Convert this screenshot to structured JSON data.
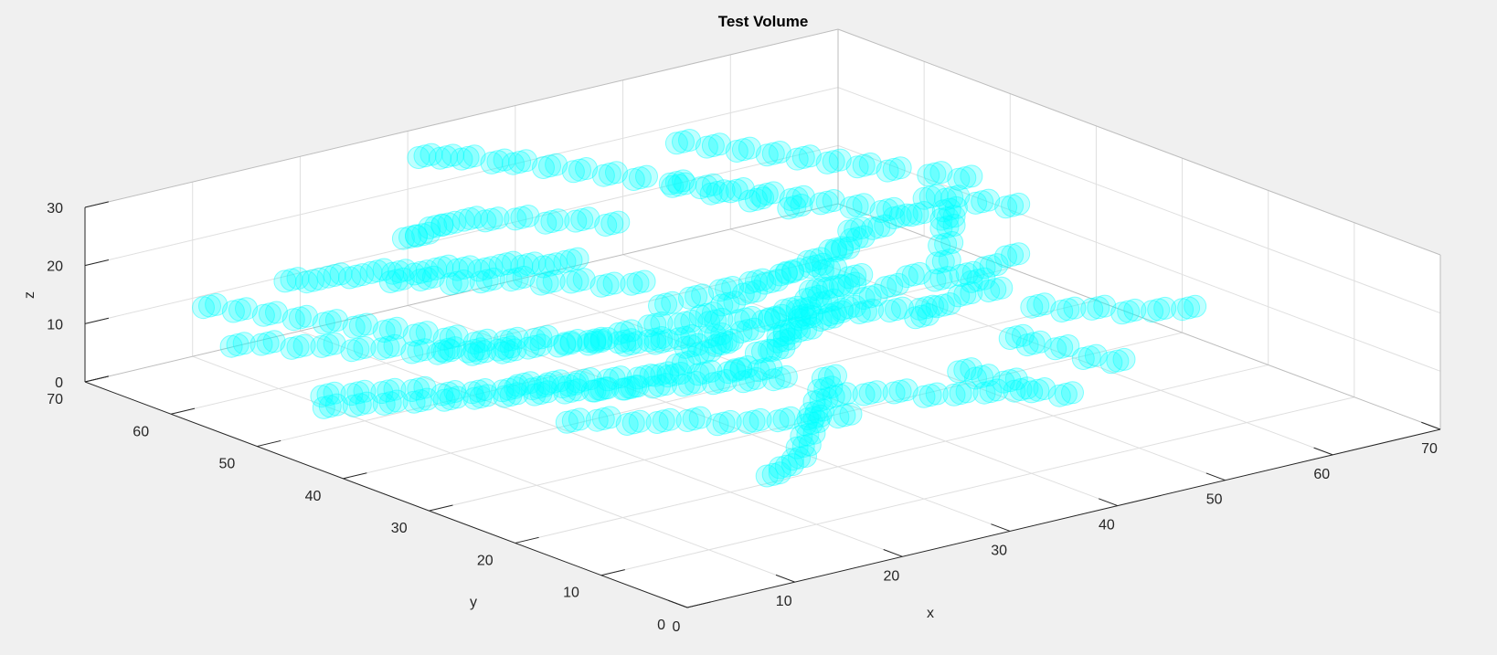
{
  "chart_data": {
    "type": "scatter",
    "subtype": "scatter3",
    "title": "Test Volume",
    "xlabel": "x",
    "ylabel": "y",
    "zlabel": "z",
    "xlim": [
      0,
      70
    ],
    "ylim": [
      0,
      70
    ],
    "zlim": [
      0,
      30
    ],
    "xticks": [
      0,
      10,
      20,
      30,
      40,
      50,
      60,
      70
    ],
    "yticks": [
      0,
      10,
      20,
      30,
      40,
      50,
      60,
      70
    ],
    "zticks": [
      0,
      10,
      20,
      30
    ],
    "grid": true,
    "marker_color": "#00ffff",
    "marker_alpha": 0.25,
    "series": [
      {
        "points": [
          [
            24,
            63,
            18
          ],
          [
            26,
            64,
            17
          ],
          [
            28,
            65,
            17
          ],
          [
            30,
            66,
            16
          ],
          [
            32,
            66,
            16
          ],
          [
            34,
            66,
            15
          ],
          [
            36,
            65,
            15
          ],
          [
            38,
            64,
            14
          ],
          [
            40,
            63,
            14
          ],
          [
            42,
            62,
            13
          ],
          [
            31,
            70,
            25
          ],
          [
            33,
            70,
            24
          ],
          [
            35,
            70,
            23
          ],
          [
            37,
            69,
            22
          ],
          [
            39,
            69,
            21
          ],
          [
            41,
            68,
            20
          ],
          [
            43,
            67,
            19
          ],
          [
            45,
            66,
            18
          ],
          [
            47,
            65,
            17
          ],
          [
            49,
            63,
            16
          ],
          [
            51,
            61,
            15
          ],
          [
            53,
            59,
            14
          ],
          [
            55,
            57,
            13
          ],
          [
            9,
            58,
            20
          ],
          [
            11,
            58,
            19
          ],
          [
            13,
            58,
            19
          ],
          [
            15,
            58,
            18
          ],
          [
            17,
            58,
            18
          ],
          [
            19,
            58,
            17
          ],
          [
            21,
            58,
            16
          ],
          [
            23,
            58,
            16
          ],
          [
            25,
            58,
            15
          ],
          [
            27,
            58,
            14
          ],
          [
            29,
            58,
            14
          ],
          [
            31,
            58,
            13
          ],
          [
            33,
            58,
            12
          ],
          [
            35,
            58,
            12
          ],
          [
            22,
            62,
            12
          ],
          [
            24,
            61,
            12
          ],
          [
            26,
            60,
            11
          ],
          [
            28,
            59,
            11
          ],
          [
            30,
            58,
            11
          ],
          [
            32,
            57,
            10
          ],
          [
            34,
            56,
            10
          ],
          [
            36,
            55,
            9
          ],
          [
            38,
            54,
            9
          ],
          [
            3,
            60,
            17
          ],
          [
            5,
            59,
            16
          ],
          [
            7,
            58,
            15
          ],
          [
            9,
            57,
            14
          ],
          [
            11,
            56,
            13
          ],
          [
            13,
            55,
            12
          ],
          [
            15,
            54,
            11
          ],
          [
            17,
            53,
            10
          ],
          [
            19,
            52,
            9
          ],
          [
            21,
            51,
            8
          ],
          [
            23,
            50,
            8
          ],
          [
            25,
            49,
            8
          ],
          [
            27,
            48,
            7
          ],
          [
            29,
            47,
            7
          ],
          [
            31,
            46,
            6
          ],
          [
            33,
            45,
            6
          ],
          [
            35,
            44,
            5
          ],
          [
            37,
            43,
            5
          ],
          [
            4,
            58,
            11
          ],
          [
            6,
            57,
            11
          ],
          [
            8,
            56,
            10
          ],
          [
            10,
            55,
            10
          ],
          [
            12,
            54,
            9
          ],
          [
            14,
            53,
            9
          ],
          [
            16,
            52,
            8
          ],
          [
            18,
            51,
            8
          ],
          [
            20,
            50,
            7
          ],
          [
            22,
            49,
            7
          ],
          [
            6,
            50,
            6
          ],
          [
            8,
            49,
            6
          ],
          [
            10,
            48,
            6
          ],
          [
            12,
            47,
            6
          ],
          [
            14,
            46,
            5
          ],
          [
            16,
            45,
            5
          ],
          [
            18,
            44,
            5
          ],
          [
            20,
            43,
            5
          ],
          [
            22,
            42,
            5
          ],
          [
            24,
            41,
            4
          ],
          [
            26,
            40,
            4
          ],
          [
            28,
            39,
            4
          ],
          [
            30,
            38,
            4
          ],
          [
            32,
            37,
            4
          ],
          [
            34,
            36,
            4
          ],
          [
            36,
            35,
            4
          ],
          [
            7,
            51,
            3
          ],
          [
            9,
            50,
            3
          ],
          [
            11,
            49,
            3
          ],
          [
            13,
            48,
            3
          ],
          [
            15,
            47,
            3
          ],
          [
            17,
            46,
            3
          ],
          [
            19,
            45,
            3
          ],
          [
            21,
            44,
            3
          ],
          [
            23,
            43,
            3
          ],
          [
            25,
            42,
            3
          ],
          [
            27,
            41,
            3
          ],
          [
            16,
            34,
            6
          ],
          [
            18,
            33,
            6
          ],
          [
            20,
            32,
            5
          ],
          [
            22,
            31,
            5
          ],
          [
            24,
            30,
            5
          ],
          [
            26,
            29,
            4
          ],
          [
            28,
            28,
            4
          ],
          [
            30,
            27,
            4
          ],
          [
            32,
            26,
            4
          ],
          [
            34,
            25,
            4
          ],
          [
            21,
            17,
            4
          ],
          [
            23,
            18,
            4
          ],
          [
            25,
            19,
            4
          ],
          [
            27,
            21,
            4
          ],
          [
            29,
            23,
            4
          ],
          [
            31,
            25,
            4
          ],
          [
            33,
            27,
            4
          ],
          [
            35,
            29,
            4
          ],
          [
            37,
            31,
            4
          ],
          [
            39,
            33,
            4
          ],
          [
            36,
            28,
            5
          ],
          [
            38,
            27,
            5
          ],
          [
            40,
            26,
            5
          ],
          [
            42,
            25,
            4
          ],
          [
            44,
            24,
            4
          ],
          [
            46,
            23,
            4
          ],
          [
            48,
            22,
            4
          ],
          [
            29,
            40,
            5
          ],
          [
            31,
            40,
            6
          ],
          [
            33,
            40,
            7
          ],
          [
            35,
            40,
            8
          ],
          [
            37,
            40,
            9
          ],
          [
            39,
            40,
            10
          ],
          [
            41,
            40,
            11
          ],
          [
            43,
            40,
            12
          ],
          [
            45,
            40,
            13
          ],
          [
            47,
            40,
            14
          ],
          [
            38,
            46,
            8
          ],
          [
            40,
            46,
            9
          ],
          [
            42,
            46,
            10
          ],
          [
            44,
            46,
            11
          ],
          [
            46,
            46,
            12
          ],
          [
            48,
            46,
            13
          ],
          [
            50,
            46,
            14
          ],
          [
            52,
            46,
            15
          ],
          [
            54,
            46,
            16
          ],
          [
            56,
            46,
            17
          ],
          [
            39,
            52,
            6
          ],
          [
            41,
            51,
            7
          ],
          [
            43,
            50,
            8
          ],
          [
            45,
            49,
            9
          ],
          [
            47,
            48,
            10
          ],
          [
            49,
            47,
            11
          ],
          [
            44,
            57,
            22
          ],
          [
            46,
            56,
            21
          ],
          [
            48,
            55,
            20
          ],
          [
            50,
            54,
            19
          ],
          [
            52,
            53,
            18
          ],
          [
            54,
            52,
            17
          ],
          [
            56,
            51,
            16
          ],
          [
            58,
            50,
            15
          ],
          [
            60,
            49,
            14
          ],
          [
            62,
            48,
            13
          ],
          [
            47,
            60,
            26
          ],
          [
            49,
            59,
            25
          ],
          [
            51,
            58,
            24
          ],
          [
            53,
            57,
            23
          ],
          [
            55,
            56,
            22
          ],
          [
            57,
            55,
            21
          ],
          [
            59,
            54,
            20
          ],
          [
            61,
            53,
            19
          ],
          [
            58,
            45,
            20
          ],
          [
            60,
            45,
            19
          ],
          [
            62,
            44,
            18
          ],
          [
            64,
            43,
            17
          ],
          [
            62,
            46,
            21
          ],
          [
            60,
            47,
            22
          ],
          [
            55,
            40,
            10
          ],
          [
            56,
            41,
            12
          ],
          [
            57,
            42,
            14
          ],
          [
            58,
            43,
            16
          ],
          [
            59,
            44,
            18
          ],
          [
            59,
            42,
            8
          ],
          [
            60,
            40,
            6
          ],
          [
            60,
            35,
            6
          ],
          [
            62,
            34,
            5
          ],
          [
            64,
            33,
            5
          ],
          [
            66,
            32,
            4
          ],
          [
            68,
            31,
            4
          ],
          [
            70,
            30,
            4
          ],
          [
            54,
            30,
            6
          ],
          [
            54,
            28,
            6
          ],
          [
            55,
            26,
            6
          ],
          [
            56,
            24,
            5
          ],
          [
            57,
            22,
            5
          ],
          [
            46,
            26,
            6
          ],
          [
            46,
            24,
            6
          ],
          [
            47,
            22,
            6
          ],
          [
            48,
            20,
            5
          ],
          [
            49,
            18,
            5
          ],
          [
            35,
            34,
            10
          ],
          [
            37,
            35,
            12
          ],
          [
            39,
            36,
            14
          ],
          [
            41,
            37,
            16
          ],
          [
            43,
            38,
            18
          ],
          [
            45,
            39,
            20
          ],
          [
            47,
            40,
            22
          ],
          [
            50,
            36,
            8
          ],
          [
            52,
            36,
            9
          ],
          [
            54,
            36,
            10
          ],
          [
            56,
            37,
            11
          ],
          [
            58,
            38,
            12
          ],
          [
            60,
            38,
            13
          ],
          [
            26,
            44,
            10
          ],
          [
            28,
            43,
            11
          ],
          [
            30,
            42,
            12
          ],
          [
            32,
            41,
            12
          ],
          [
            34,
            40,
            12
          ],
          [
            36,
            39,
            12
          ],
          [
            38,
            38,
            12
          ],
          [
            40,
            37,
            12
          ],
          [
            42,
            36,
            12
          ],
          [
            44,
            35,
            12
          ],
          [
            46,
            34,
            12
          ],
          [
            48,
            33,
            12
          ],
          [
            17,
            41,
            8
          ],
          [
            19,
            40,
            8
          ],
          [
            21,
            39,
            8
          ],
          [
            23,
            38,
            8
          ],
          [
            25,
            37,
            8
          ],
          [
            27,
            36,
            8
          ],
          [
            29,
            35,
            8
          ],
          [
            31,
            34,
            8
          ],
          [
            33,
            33,
            8
          ],
          [
            30,
            32,
            10
          ],
          [
            32,
            32,
            12
          ],
          [
            34,
            32,
            14
          ],
          [
            36,
            32,
            16
          ],
          [
            38,
            32,
            18
          ],
          [
            40,
            32,
            20
          ],
          [
            42,
            42,
            4
          ],
          [
            44,
            42,
            5
          ],
          [
            46,
            42,
            6
          ],
          [
            48,
            42,
            7
          ],
          [
            50,
            42,
            8
          ],
          [
            52,
            42,
            9
          ],
          [
            54,
            42,
            10
          ],
          [
            12,
            44,
            14
          ],
          [
            14,
            43,
            14
          ],
          [
            16,
            42,
            14
          ],
          [
            18,
            41,
            14
          ],
          [
            20,
            40,
            14
          ],
          [
            22,
            39,
            14
          ],
          [
            24,
            38,
            14
          ],
          [
            26,
            37,
            14
          ],
          [
            28,
            36,
            14
          ],
          [
            30,
            35,
            14
          ]
        ]
      }
    ]
  }
}
